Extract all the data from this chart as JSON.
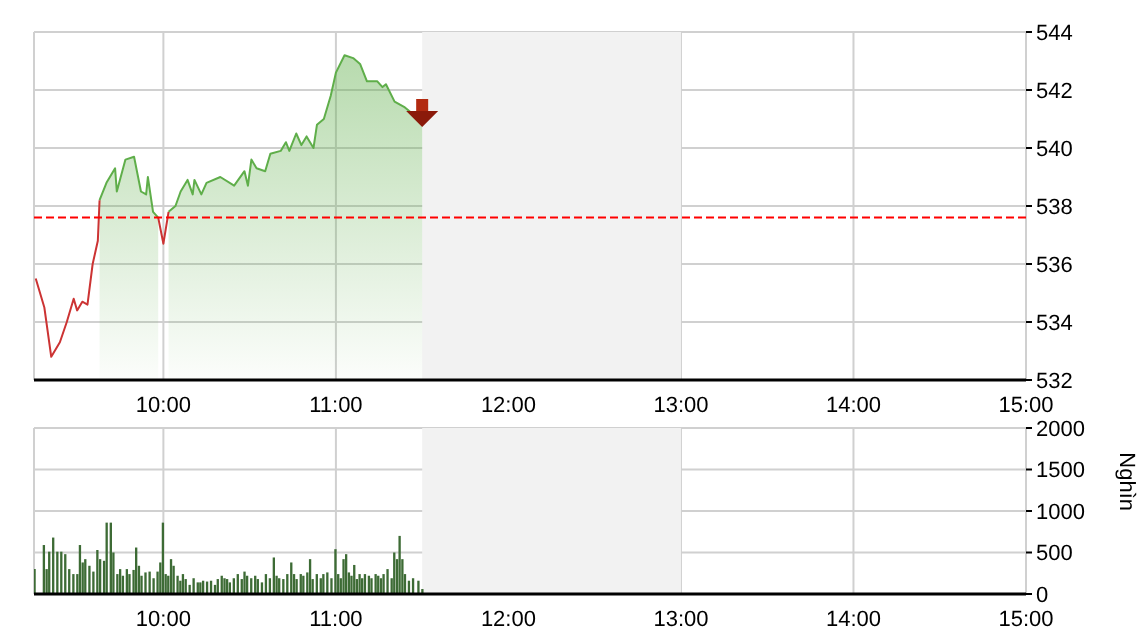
{
  "chart_data": [
    {
      "type": "area",
      "xlim": [
        9.25,
        15
      ],
      "xticks": [
        {
          "value": 10,
          "label": "10:00"
        },
        {
          "value": 11,
          "label": "11:00"
        },
        {
          "value": 12,
          "label": "12:00"
        },
        {
          "value": 13,
          "label": "13:00"
        },
        {
          "value": 14,
          "label": "14:00"
        },
        {
          "value": 15,
          "label": "15:00"
        }
      ],
      "ylim": [
        532,
        544
      ],
      "yticks": [
        532,
        534,
        536,
        538,
        540,
        542,
        544
      ],
      "grid": true,
      "x": [
        9.26,
        9.31,
        9.35,
        9.4,
        9.44,
        9.48,
        9.5,
        9.53,
        9.56,
        9.59,
        9.62,
        9.63,
        9.67,
        9.72,
        9.73,
        9.78,
        9.83,
        9.87,
        9.9,
        9.91,
        9.94,
        9.97,
        10.0,
        10.03,
        10.07,
        10.1,
        10.14,
        10.17,
        10.18,
        10.22,
        10.25,
        10.33,
        10.41,
        10.47,
        10.49,
        10.51,
        10.54,
        10.59,
        10.62,
        10.68,
        10.71,
        10.73,
        10.77,
        10.8,
        10.83,
        10.87,
        10.89,
        10.93,
        10.97,
        11.0,
        11.05,
        11.1,
        11.14,
        11.18,
        11.24,
        11.27,
        11.29,
        11.34,
        11.4,
        11.46,
        11.5
      ],
      "series": [
        {
          "type": "line",
          "color": "#cc3333",
          "values": [
            535.5,
            534.5,
            532.8,
            533.3,
            534.0,
            534.8,
            534.4,
            534.7,
            534.6,
            536.0,
            536.8,
            538.2,
            null,
            null,
            null,
            null,
            null,
            null,
            null,
            null,
            null,
            537.6,
            536.7,
            537.8,
            null,
            null,
            null,
            null,
            null,
            null,
            null,
            null,
            null,
            null,
            null,
            null,
            null,
            null,
            null,
            null,
            null,
            null,
            null,
            null,
            null,
            null,
            null,
            null,
            null,
            null,
            null,
            null,
            null,
            null,
            null,
            null,
            null,
            null,
            null,
            null,
            null
          ]
        },
        {
          "type": "area",
          "color": "#5fae4a",
          "values": [
            null,
            null,
            null,
            null,
            null,
            null,
            null,
            null,
            null,
            null,
            null,
            538.2,
            538.8,
            539.3,
            538.5,
            539.6,
            539.7,
            538.5,
            538.4,
            539.0,
            537.8,
            537.6,
            null,
            537.8,
            538.0,
            538.5,
            538.9,
            538.4,
            538.9,
            538.4,
            538.8,
            539.0,
            538.7,
            539.2,
            538.7,
            539.6,
            539.3,
            539.2,
            539.8,
            539.9,
            540.2,
            539.9,
            540.5,
            540.1,
            540.4,
            540.0,
            540.8,
            541.0,
            541.8,
            542.6,
            543.2,
            543.1,
            542.9,
            542.3,
            542.3,
            542.1,
            542.2,
            541.6,
            541.4,
            541.1,
            541.0
          ]
        }
      ],
      "ref_lines": [
        {
          "axis": "y",
          "value": 537.6,
          "color": "#ff0000",
          "line_style": "dashed"
        }
      ],
      "bands": [
        {
          "axis": "x",
          "from": 11.5,
          "to": 13,
          "color": "#f2f2f2"
        }
      ]
    },
    {
      "type": "bar",
      "ylabel": "Nghìn",
      "xlim": [
        9.25,
        15
      ],
      "xticks": [
        {
          "value": 10,
          "label": "10:00"
        },
        {
          "value": 11,
          "label": "11:00"
        },
        {
          "value": 12,
          "label": "12:00"
        },
        {
          "value": 13,
          "label": "13:00"
        },
        {
          "value": 14,
          "label": "14:00"
        },
        {
          "value": 15,
          "label": "15:00"
        }
      ],
      "ylim": [
        0,
        2000
      ],
      "yticks": [
        0,
        500,
        1000,
        1500,
        2000
      ],
      "grid": true,
      "color": "#3d6b35",
      "x": [
        9.254,
        9.308,
        9.324,
        9.339,
        9.362,
        9.386,
        9.409,
        9.432,
        9.455,
        9.479,
        9.502,
        9.517,
        9.533,
        9.548,
        9.572,
        9.595,
        9.618,
        9.634,
        9.657,
        9.672,
        9.696,
        9.711,
        9.734,
        9.75,
        9.766,
        9.789,
        9.804,
        9.828,
        9.843,
        9.859,
        9.874,
        9.897,
        9.921,
        9.944,
        9.967,
        9.983,
        9.998,
        10.014,
        10.029,
        10.045,
        10.06,
        10.083,
        10.099,
        10.114,
        10.13,
        10.153,
        10.176,
        10.2,
        10.215,
        10.231,
        10.254,
        10.277,
        10.3,
        10.316,
        10.339,
        10.355,
        10.37,
        10.386,
        10.409,
        10.432,
        10.455,
        10.471,
        10.486,
        10.51,
        10.533,
        10.548,
        10.572,
        10.595,
        10.618,
        10.641,
        10.657,
        10.672,
        10.696,
        10.719,
        10.742,
        10.758,
        10.773,
        10.797,
        10.812,
        10.835,
        10.851,
        10.866,
        10.89,
        10.913,
        10.928,
        10.951,
        10.975,
        10.998,
        11.014,
        11.029,
        11.045,
        11.06,
        11.076,
        11.091,
        11.107,
        11.122,
        11.138,
        11.153,
        11.169,
        11.192,
        11.207,
        11.231,
        11.246,
        11.262,
        11.277,
        11.3,
        11.324,
        11.339,
        11.355,
        11.37,
        11.386,
        11.401,
        11.424,
        11.448,
        11.479,
        11.502
      ],
      "values": [
        300,
        590,
        300,
        510,
        680,
        510,
        510,
        480,
        300,
        240,
        240,
        590,
        380,
        420,
        340,
        270,
        530,
        420,
        400,
        860,
        860,
        500,
        240,
        300,
        220,
        300,
        240,
        290,
        560,
        340,
        220,
        260,
        270,
        190,
        270,
        380,
        860,
        240,
        220,
        420,
        340,
        220,
        160,
        240,
        180,
        110,
        190,
        140,
        140,
        160,
        150,
        160,
        110,
        180,
        220,
        190,
        180,
        140,
        190,
        240,
        180,
        270,
        220,
        190,
        220,
        180,
        140,
        240,
        190,
        440,
        220,
        190,
        180,
        240,
        380,
        240,
        180,
        240,
        220,
        260,
        420,
        180,
        240,
        190,
        240,
        260,
        190,
        540,
        240,
        190,
        420,
        480,
        260,
        220,
        350,
        180,
        240,
        190,
        240,
        220,
        190,
        240,
        220,
        190,
        240,
        300,
        190,
        500,
        420,
        700,
        420,
        240,
        160,
        190,
        160,
        60
      ],
      "bands": [
        {
          "axis": "x",
          "from": 11.5,
          "to": 13,
          "color": "#f2f2f2"
        }
      ]
    }
  ]
}
